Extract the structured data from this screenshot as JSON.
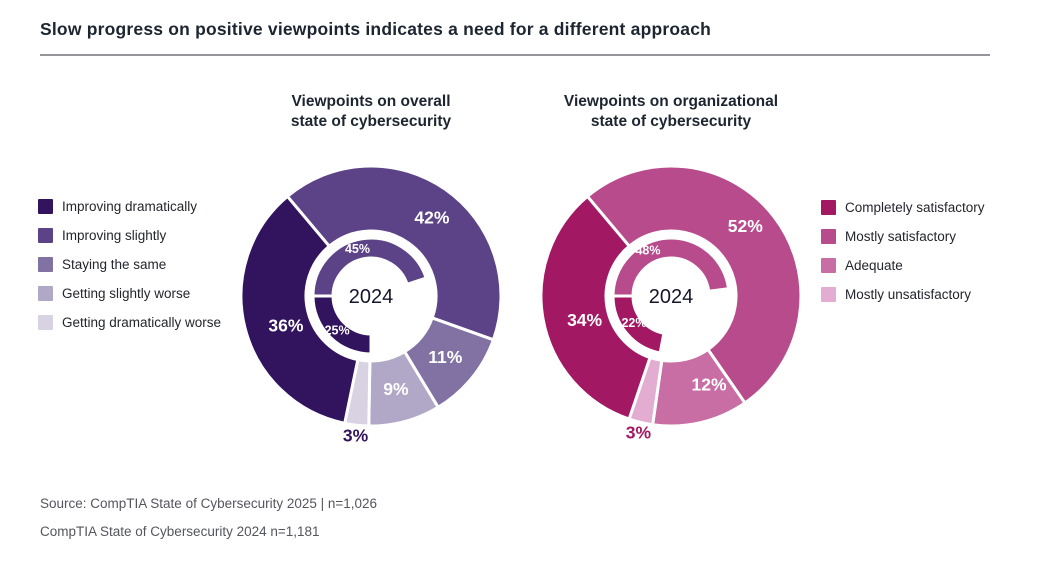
{
  "title": "Slow progress on positive viewpoints indicates a need for a different approach",
  "source": {
    "line1": "Source: CompTIA State of Cybersecurity 2025 | n=1,026",
    "line2": "CompTIA State of Cybersecurity 2024 n=1,181"
  },
  "legends": {
    "overall": [
      {
        "label": "Improving dramatically",
        "color": "#31135e"
      },
      {
        "label": "Improving slightly",
        "color": "#5c4387"
      },
      {
        "label": "Staying the same",
        "color": "#8172a3"
      },
      {
        "label": "Getting slightly worse",
        "color": "#b1a8c8"
      },
      {
        "label": "Getting dramatically worse",
        "color": "#d8d2e3"
      }
    ],
    "organizational": [
      {
        "label": "Completely satisfactory",
        "color": "#a21862"
      },
      {
        "label": "Mostly satisfactory",
        "color": "#b84b8c"
      },
      {
        "label": "Adequate",
        "color": "#c96ea4"
      },
      {
        "label": "Mostly unsatisfactory",
        "color": "#e2add0"
      }
    ]
  },
  "chart_data": [
    {
      "type": "donut",
      "title": "Viewpoints on overall\nstate of cybersecurity",
      "center_label": "2024",
      "accent": "#31135e",
      "start_angle_outer": 320,
      "start_angle_inner": 270,
      "outer_ring": {
        "segments": [
          {
            "category": "Improving slightly",
            "value": 42,
            "label": "42%",
            "color": "#5c4387",
            "label_dx": 6
          },
          {
            "category": "Staying the same",
            "value": 11,
            "label": "11%",
            "color": "#8172a3"
          },
          {
            "category": "Getting slightly worse",
            "value": 9,
            "label": "9%",
            "color": "#b1a8c8"
          },
          {
            "category": "Getting dramatically worse",
            "value": 3,
            "label": "3%",
            "color": "#d8d2e3",
            "label_outside": true
          },
          {
            "category": "Improving dramatically",
            "value": 36,
            "label": "36%",
            "color": "#31135e",
            "label_dx": 8,
            "label_dy": 6
          }
        ]
      },
      "inner_ring": {
        "segments": [
          {
            "category": "Improving slightly",
            "value": 45,
            "label": "45%",
            "color": "#5c4387",
            "label_dx": -6
          },
          {
            "value": 30,
            "gap": true
          },
          {
            "category": "Improving dramatically",
            "value": 25,
            "label": "25%",
            "color": "#31135e"
          }
        ]
      }
    },
    {
      "type": "donut",
      "title": "Viewpoints on organizational\nstate of cybersecurity",
      "center_label": "2024",
      "accent": "#a21862",
      "start_angle_outer": 320,
      "start_angle_inner": 270,
      "outer_ring": {
        "segments": [
          {
            "category": "Mostly satisfactory",
            "value": 52,
            "label": "52%",
            "color": "#b84b8c",
            "label_dx": -2,
            "label_dy": -12
          },
          {
            "category": "Adequate",
            "value": 12,
            "label": "12%",
            "color": "#c96ea4",
            "label_dx": 16,
            "label_dy": -5
          },
          {
            "category": "Mostly unsatisfactory",
            "value": 3,
            "label": "3%",
            "color": "#e2add0",
            "label_outside": true
          },
          {
            "category": "Completely satisfactory",
            "value": 34,
            "label": "34%",
            "color": "#a21862",
            "label_dx": 8,
            "label_dy": 6
          }
        ]
      },
      "inner_ring": {
        "segments": [
          {
            "category": "Mostly satisfactory",
            "value": 48,
            "label": "48%",
            "color": "#b84b8c",
            "label_dx": -20,
            "label_dy": 2
          },
          {
            "value": 30,
            "gap": true
          },
          {
            "category": "Completely satisfactory",
            "value": 22,
            "label": "22%",
            "color": "#a21862",
            "label_dy": -4
          }
        ]
      }
    }
  ]
}
